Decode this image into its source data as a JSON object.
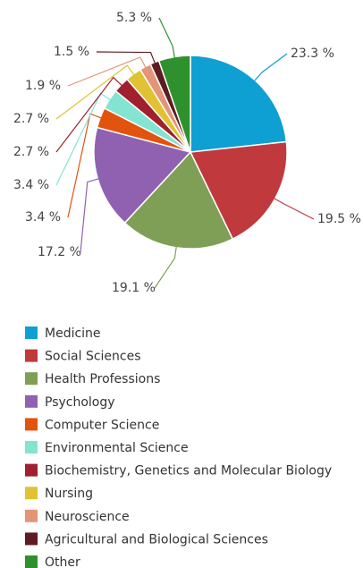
{
  "chart_data": {
    "type": "pie",
    "categories": [
      "Medicine",
      "Social Sciences",
      "Health Professions",
      "Psychology",
      "Computer Science",
      "Environmental Science",
      "Biochemistry, Genetics and Molecular Biology",
      "Nursing",
      "Neuroscience",
      "Agricultural and Biological Sciences",
      "Other"
    ],
    "values": [
      23.3,
      19.5,
      19.1,
      17.2,
      3.4,
      3.4,
      2.7,
      2.7,
      1.9,
      1.5,
      5.3
    ],
    "value_labels": [
      "23.3 %",
      "19.5 %",
      "19.1 %",
      "17.2 %",
      "3.4 %",
      "3.4 %",
      "2.7 %",
      "2.7 %",
      "1.9 %",
      "1.5 %",
      "5.3 %"
    ],
    "colors": [
      "#0ea0d2",
      "#c0393d",
      "#7e9f55",
      "#9061b1",
      "#e2540e",
      "#84e4d2",
      "#a0202e",
      "#e0c232",
      "#e49478",
      "#5e1c22",
      "#2f912e"
    ],
    "legend": "bottom"
  }
}
